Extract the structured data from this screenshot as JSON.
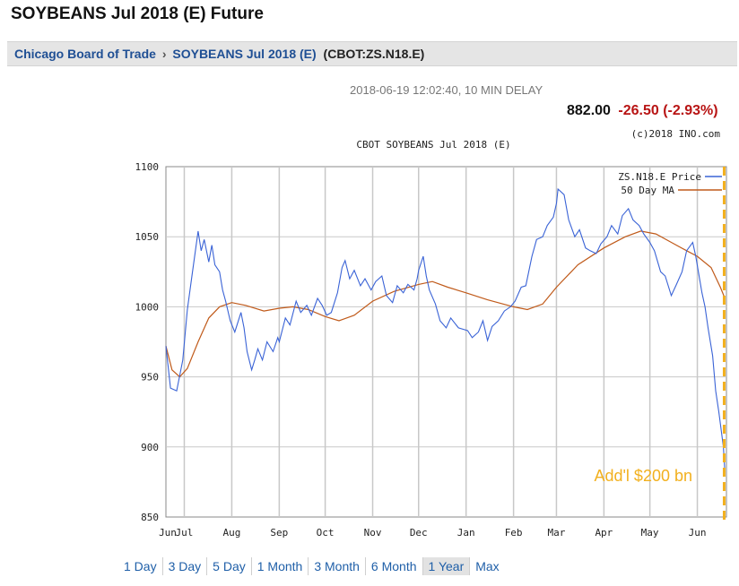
{
  "page": {
    "title": "SOYBEANS Jul 2018 (E) Future"
  },
  "breadcrumb": {
    "exchange": "Chicago Board of Trade",
    "separator": "›",
    "contract": "SOYBEANS Jul 2018 (E)",
    "symbol": "(CBOT:ZS.N18.E)"
  },
  "quote": {
    "timestamp": "2018-06-19 12:02:40, 10 MIN DELAY",
    "last": "882.00",
    "change": "-26.50 (-2.93%)",
    "copyright": "(c)2018 INO.com"
  },
  "range_buttons": [
    "1 Day",
    "3 Day",
    "5 Day",
    "1 Month",
    "3 Month",
    "6 Month",
    "1 Year",
    "Max"
  ],
  "active_range": "1 Year",
  "colors": {
    "price": "#3a63d6",
    "ma": "#c05a1a",
    "annotation": "#f2b01e",
    "grid": "#c8c8c8",
    "link": "#1f5fa8",
    "negative": "#b81414"
  },
  "chart_data": {
    "type": "line",
    "title": "CBOT SOYBEANS Jul 2018 (E)",
    "xlabel": "",
    "ylabel": "",
    "ylim": [
      850,
      1100
    ],
    "yticks": [
      850,
      900,
      950,
      1000,
      1050,
      1100
    ],
    "x_tick_labels": [
      "Jun",
      "Jul",
      "Aug",
      "Sep",
      "Oct",
      "Nov",
      "Dec",
      "Jan",
      "Feb",
      "Mar",
      "Apr",
      "May",
      "Jun"
    ],
    "x_ticks": [
      "2017-06-19",
      "2017-07-01",
      "2017-08-01",
      "2017-09-01",
      "2017-10-01",
      "2017-11-01",
      "2017-12-01",
      "2018-01-01",
      "2018-02-01",
      "2018-03-01",
      "2018-04-01",
      "2018-05-01",
      "2018-06-01"
    ],
    "xlim": [
      "2017-06-19",
      "2018-06-20"
    ],
    "grid": true,
    "legend_position": "top-right",
    "series": [
      {
        "name": "ZS.N18.E Price",
        "points": [
          [
            "2017-06-19",
            972
          ],
          [
            "2017-06-22",
            942
          ],
          [
            "2017-06-26",
            940
          ],
          [
            "2017-06-30",
            962
          ],
          [
            "2017-07-03",
            998
          ],
          [
            "2017-07-06",
            1022
          ],
          [
            "2017-07-10",
            1054
          ],
          [
            "2017-07-12",
            1040
          ],
          [
            "2017-07-14",
            1048
          ],
          [
            "2017-07-17",
            1032
          ],
          [
            "2017-07-19",
            1044
          ],
          [
            "2017-07-21",
            1030
          ],
          [
            "2017-07-24",
            1025
          ],
          [
            "2017-07-26",
            1012
          ],
          [
            "2017-07-28",
            1004
          ],
          [
            "2017-07-31",
            990
          ],
          [
            "2017-08-03",
            982
          ],
          [
            "2017-08-07",
            996
          ],
          [
            "2017-08-09",
            985
          ],
          [
            "2017-08-11",
            968
          ],
          [
            "2017-08-14",
            955
          ],
          [
            "2017-08-16",
            962
          ],
          [
            "2017-08-18",
            970
          ],
          [
            "2017-08-21",
            962
          ],
          [
            "2017-08-24",
            975
          ],
          [
            "2017-08-28",
            968
          ],
          [
            "2017-08-31",
            978
          ],
          [
            "2017-09-01",
            975
          ],
          [
            "2017-09-05",
            992
          ],
          [
            "2017-09-08",
            987
          ],
          [
            "2017-09-12",
            1004
          ],
          [
            "2017-09-15",
            996
          ],
          [
            "2017-09-19",
            1001
          ],
          [
            "2017-09-22",
            994
          ],
          [
            "2017-09-26",
            1006
          ],
          [
            "2017-09-29",
            1001
          ],
          [
            "2017-10-02",
            994
          ],
          [
            "2017-10-05",
            996
          ],
          [
            "2017-10-09",
            1010
          ],
          [
            "2017-10-12",
            1028
          ],
          [
            "2017-10-14",
            1033
          ],
          [
            "2017-10-17",
            1020
          ],
          [
            "2017-10-20",
            1026
          ],
          [
            "2017-10-24",
            1015
          ],
          [
            "2017-10-27",
            1020
          ],
          [
            "2017-10-31",
            1012
          ],
          [
            "2017-11-03",
            1018
          ],
          [
            "2017-11-07",
            1022
          ],
          [
            "2017-11-10",
            1008
          ],
          [
            "2017-11-14",
            1003
          ],
          [
            "2017-11-17",
            1015
          ],
          [
            "2017-11-21",
            1010
          ],
          [
            "2017-11-24",
            1016
          ],
          [
            "2017-11-28",
            1012
          ],
          [
            "2017-11-30",
            1020
          ],
          [
            "2017-12-01",
            1026
          ],
          [
            "2017-12-04",
            1036
          ],
          [
            "2017-12-06",
            1022
          ],
          [
            "2017-12-08",
            1012
          ],
          [
            "2017-12-12",
            1002
          ],
          [
            "2017-12-15",
            990
          ],
          [
            "2017-12-19",
            985
          ],
          [
            "2017-12-22",
            992
          ],
          [
            "2017-12-27",
            985
          ],
          [
            "2018-01-02",
            983
          ],
          [
            "2018-01-05",
            978
          ],
          [
            "2018-01-09",
            982
          ],
          [
            "2018-01-12",
            990
          ],
          [
            "2018-01-15",
            976
          ],
          [
            "2018-01-18",
            986
          ],
          [
            "2018-01-22",
            990
          ],
          [
            "2018-01-26",
            997
          ],
          [
            "2018-01-30",
            1000
          ],
          [
            "2018-02-02",
            1004
          ],
          [
            "2018-02-06",
            1014
          ],
          [
            "2018-02-09",
            1015
          ],
          [
            "2018-02-13",
            1036
          ],
          [
            "2018-02-16",
            1048
          ],
          [
            "2018-02-20",
            1050
          ],
          [
            "2018-02-23",
            1058
          ],
          [
            "2018-02-27",
            1064
          ],
          [
            "2018-03-01",
            1074
          ],
          [
            "2018-03-02",
            1084
          ],
          [
            "2018-03-06",
            1080
          ],
          [
            "2018-03-09",
            1062
          ],
          [
            "2018-03-13",
            1050
          ],
          [
            "2018-03-16",
            1055
          ],
          [
            "2018-03-20",
            1042
          ],
          [
            "2018-03-23",
            1040
          ],
          [
            "2018-03-27",
            1038
          ],
          [
            "2018-03-30",
            1045
          ],
          [
            "2018-04-03",
            1050
          ],
          [
            "2018-04-06",
            1058
          ],
          [
            "2018-04-10",
            1052
          ],
          [
            "2018-04-13",
            1065
          ],
          [
            "2018-04-17",
            1070
          ],
          [
            "2018-04-20",
            1062
          ],
          [
            "2018-04-24",
            1058
          ],
          [
            "2018-04-27",
            1052
          ],
          [
            "2018-05-01",
            1046
          ],
          [
            "2018-05-04",
            1040
          ],
          [
            "2018-05-08",
            1025
          ],
          [
            "2018-05-11",
            1022
          ],
          [
            "2018-05-15",
            1008
          ],
          [
            "2018-05-18",
            1015
          ],
          [
            "2018-05-22",
            1025
          ],
          [
            "2018-05-25",
            1040
          ],
          [
            "2018-05-29",
            1046
          ],
          [
            "2018-05-31",
            1036
          ],
          [
            "2018-06-04",
            1010
          ],
          [
            "2018-06-06",
            1000
          ],
          [
            "2018-06-08",
            985
          ],
          [
            "2018-06-11",
            965
          ],
          [
            "2018-06-13",
            940
          ],
          [
            "2018-06-15",
            925
          ],
          [
            "2018-06-18",
            900
          ],
          [
            "2018-06-19",
            882
          ]
        ]
      },
      {
        "name": "50 Day MA",
        "points": [
          [
            "2017-06-19",
            972
          ],
          [
            "2017-06-23",
            955
          ],
          [
            "2017-06-28",
            950
          ],
          [
            "2017-07-03",
            956
          ],
          [
            "2017-07-10",
            975
          ],
          [
            "2017-07-17",
            992
          ],
          [
            "2017-07-24",
            1000
          ],
          [
            "2017-08-01",
            1003
          ],
          [
            "2017-08-10",
            1001
          ],
          [
            "2017-08-22",
            997
          ],
          [
            "2017-09-01",
            999
          ],
          [
            "2017-09-10",
            1000
          ],
          [
            "2017-09-20",
            998
          ],
          [
            "2017-10-01",
            993
          ],
          [
            "2017-10-10",
            990
          ],
          [
            "2017-10-20",
            994
          ],
          [
            "2017-11-01",
            1004
          ],
          [
            "2017-11-15",
            1011
          ],
          [
            "2017-12-01",
            1016
          ],
          [
            "2017-12-10",
            1018
          ],
          [
            "2017-12-20",
            1014
          ],
          [
            "2018-01-01",
            1010
          ],
          [
            "2018-01-15",
            1005
          ],
          [
            "2018-02-01",
            1000
          ],
          [
            "2018-02-10",
            998
          ],
          [
            "2018-02-20",
            1002
          ],
          [
            "2018-03-01",
            1014
          ],
          [
            "2018-03-15",
            1030
          ],
          [
            "2018-04-01",
            1042
          ],
          [
            "2018-04-15",
            1050
          ],
          [
            "2018-04-25",
            1054
          ],
          [
            "2018-05-05",
            1052
          ],
          [
            "2018-05-15",
            1046
          ],
          [
            "2018-05-25",
            1040
          ],
          [
            "2018-06-01",
            1036
          ],
          [
            "2018-06-10",
            1028
          ],
          [
            "2018-06-16",
            1014
          ],
          [
            "2018-06-19",
            1006
          ]
        ]
      }
    ],
    "annotations": [
      {
        "text": "Add'l $200 bn",
        "x": "2018-06-15",
        "style": "dashed-vertical-line"
      }
    ]
  }
}
